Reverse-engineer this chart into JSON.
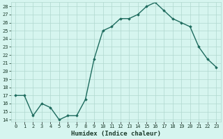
{
  "x": [
    0,
    1,
    2,
    3,
    4,
    5,
    6,
    7,
    8,
    9,
    10,
    11,
    12,
    13,
    14,
    15,
    16,
    17,
    18,
    19,
    20,
    21,
    22,
    23
  ],
  "y": [
    17,
    17,
    14.5,
    16,
    15.5,
    14,
    14.5,
    14.5,
    16.5,
    21.5,
    25,
    25.5,
    26.5,
    26.5,
    27,
    28,
    28.5,
    27.5,
    26.5,
    26,
    25.5,
    23,
    21.5,
    20.5
  ],
  "xlabel": "Humidex (Indice chaleur)",
  "ylim": [
    14,
    28
  ],
  "xlim": [
    -0.5,
    23.5
  ],
  "yticks": [
    14,
    15,
    16,
    17,
    18,
    19,
    20,
    21,
    22,
    23,
    24,
    25,
    26,
    27,
    28
  ],
  "xtick_labels": [
    "0",
    "1",
    "2",
    "3",
    "4",
    "5",
    "6",
    "7",
    "8",
    "9",
    "10",
    "11",
    "12",
    "13",
    "14",
    "15",
    "16",
    "17",
    "18",
    "19",
    "20",
    "21",
    "22",
    "23"
  ],
  "line_color": "#1e6b5e",
  "marker": "D",
  "marker_size": 1.8,
  "bg_color": "#d6f5ef",
  "grid_color": "#b0d8cf",
  "font_color": "#1a3a2a",
  "line_width": 1.0,
  "xlabel_fontsize": 6.5,
  "tick_fontsize": 5.0
}
